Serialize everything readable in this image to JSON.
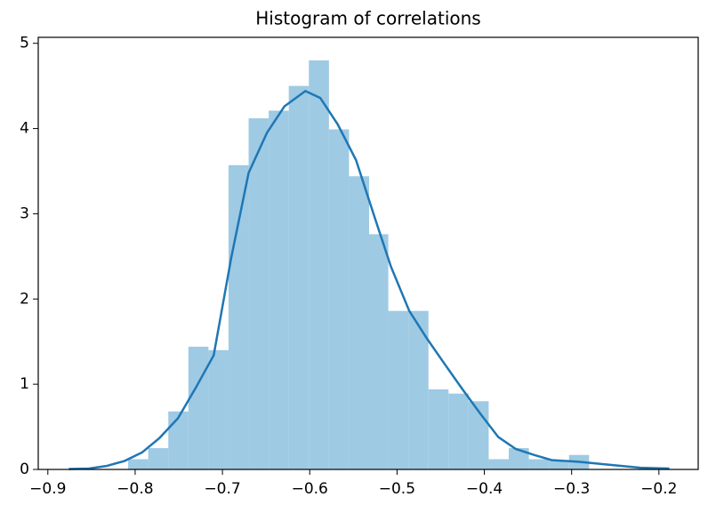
{
  "chart_data": {
    "type": "histogram",
    "title": "Histogram of correlations",
    "bins": [
      -0.808,
      -0.785,
      -0.762,
      -0.739,
      -0.716,
      -0.693,
      -0.67,
      -0.647,
      -0.624,
      -0.601,
      -0.578,
      -0.555,
      -0.532,
      -0.51,
      -0.487,
      -0.464,
      -0.441,
      -0.418,
      -0.395,
      -0.372,
      -0.349,
      -0.326,
      -0.303,
      -0.28
    ],
    "values": [
      0.12,
      0.25,
      0.68,
      1.44,
      1.4,
      3.57,
      4.12,
      4.21,
      4.5,
      4.8,
      3.99,
      3.44,
      2.76,
      1.86,
      1.86,
      0.94,
      0.89,
      0.8,
      0.12,
      0.25,
      0.12,
      0.1,
      0.17
    ],
    "color": "#9ecae4",
    "kde": {
      "color": "#1f77b4",
      "x": [
        -0.876,
        -0.853,
        -0.833,
        -0.812,
        -0.792,
        -0.772,
        -0.751,
        -0.731,
        -0.71,
        -0.69,
        -0.67,
        -0.649,
        -0.629,
        -0.605,
        -0.588,
        -0.568,
        -0.547,
        -0.527,
        -0.507,
        -0.486,
        -0.466,
        -0.445,
        -0.425,
        -0.405,
        -0.384,
        -0.364,
        -0.343,
        -0.323,
        -0.292,
        -0.262,
        -0.221,
        -0.188
      ],
      "y": [
        0.005,
        0.01,
        0.04,
        0.1,
        0.2,
        0.37,
        0.6,
        0.95,
        1.34,
        2.48,
        3.48,
        3.95,
        4.26,
        4.44,
        4.36,
        4.05,
        3.63,
        3.0,
        2.38,
        1.86,
        1.54,
        1.23,
        0.94,
        0.66,
        0.38,
        0.24,
        0.17,
        0.11,
        0.09,
        0.06,
        0.02,
        0.01
      ]
    },
    "xlim": [
      -0.911,
      -0.155
    ],
    "ylim": [
      0,
      5.07
    ],
    "xticks": [
      {
        "value": -0.9,
        "label": "−0.9"
      },
      {
        "value": -0.8,
        "label": "−0.8"
      },
      {
        "value": -0.7,
        "label": "−0.7"
      },
      {
        "value": -0.6,
        "label": "−0.6"
      },
      {
        "value": -0.5,
        "label": "−0.5"
      },
      {
        "value": -0.4,
        "label": "−0.4"
      },
      {
        "value": -0.3,
        "label": "−0.3"
      },
      {
        "value": -0.2,
        "label": "−0.2"
      }
    ],
    "yticks": [
      0,
      1,
      2,
      3,
      4,
      5
    ]
  }
}
